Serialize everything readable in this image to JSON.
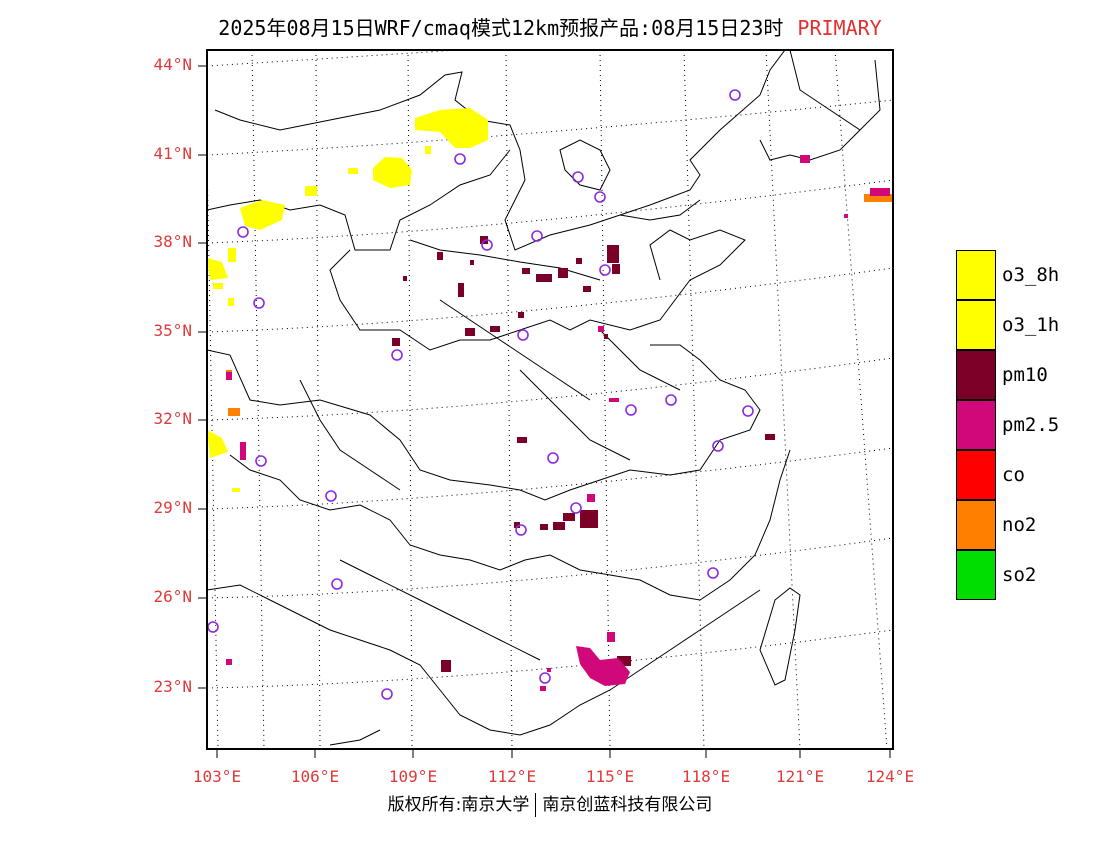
{
  "title": {
    "main": "2025年08月15日WRF/cmaq模式12km预报产品:08月15日23时",
    "tag": "PRIMARY",
    "tag_color": "#e03030"
  },
  "axes": {
    "lat_labels": [
      "44°N",
      "41°N",
      "38°N",
      "35°N",
      "32°N",
      "29°N",
      "26°N",
      "23°N"
    ],
    "lon_labels": [
      "103°E",
      "106°E",
      "109°E",
      "112°E",
      "115°E",
      "118°E",
      "121°E",
      "124°E"
    ],
    "label_color": "#e03a3a"
  },
  "legend": [
    {
      "label": "o3_8h",
      "color": "#ffff00"
    },
    {
      "label": "o3_1h",
      "color": "#ffff00"
    },
    {
      "label": "pm10",
      "color": "#7a0028"
    },
    {
      "label": "pm2.5",
      "color": "#d0087a"
    },
    {
      "label": "co",
      "color": "#ff0000"
    },
    {
      "label": "no2",
      "color": "#ff7f00"
    },
    {
      "label": "so2",
      "color": "#00dd00"
    }
  ],
  "footer": {
    "left": "版权所有:南京大学",
    "right": "南京创蓝科技有限公司"
  },
  "station_marker_color": "#8a2be2"
}
